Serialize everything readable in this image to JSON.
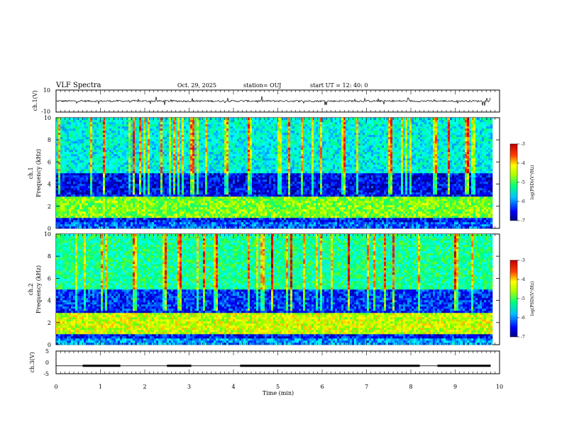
{
  "header": {
    "title": "VLF Spectra",
    "date": "Oct. 29, 2025",
    "station": "station= OUJ",
    "start_ut": "start  UT =  12: 40: 0"
  },
  "chart_data": [
    {
      "type": "line",
      "panel": "ch1-waveform",
      "ylabel": "ch.1(V)",
      "ylim": [
        -10,
        10
      ],
      "ytick_labels": [
        "10",
        "-10"
      ],
      "baseline": 0
    },
    {
      "type": "heatmap",
      "panel": "ch1-spectrogram",
      "ylabel": "ch.1 Frequency (kHz)",
      "ylabel_channel": "ch.1",
      "ylabel_freq": "Frequency  (kHz)",
      "ylim": [
        0,
        10
      ],
      "ytick_labels": [
        "0",
        "2",
        "4",
        "6",
        "8",
        "10"
      ],
      "bands_khz": [
        {
          "range": [
            0,
            0.6
          ],
          "level": -6.2
        },
        {
          "range": [
            1.0,
            2.8
          ],
          "level": -4.8
        },
        {
          "range": [
            3.0,
            5.0
          ],
          "level": -6.6
        },
        {
          "range": [
            5.0,
            10.0
          ],
          "level": -5.6
        }
      ],
      "colorbar": {
        "label": "log(PSD)(V²/Hz)",
        "range": [
          -7,
          -3
        ],
        "tick_labels": [
          "-3",
          "-4",
          "-5",
          "-6",
          "-7"
        ]
      }
    },
    {
      "type": "heatmap",
      "panel": "ch2-spectrogram",
      "ylabel": "ch.2 Frequency (kHz)",
      "ylabel_channel": "ch.2",
      "ylabel_freq": "Frequency  (kHz)",
      "ylim": [
        0,
        10
      ],
      "ytick_labels": [
        "0",
        "2",
        "4",
        "6",
        "8",
        "10"
      ],
      "bands_khz": [
        {
          "range": [
            0,
            0.6
          ],
          "level": -6.0
        },
        {
          "range": [
            1.0,
            2.8
          ],
          "level": -4.5
        },
        {
          "range": [
            3.0,
            5.0
          ],
          "level": -6.4
        },
        {
          "range": [
            5.0,
            10.0
          ],
          "level": -5.3
        }
      ],
      "colorbar": {
        "label": "log(PSD)(V²/Hz)",
        "range": [
          -7,
          -3
        ],
        "tick_labels": [
          "-3",
          "-4",
          "-5",
          "-6",
          "-7"
        ]
      }
    },
    {
      "type": "line",
      "panel": "ch3-waveform",
      "ylabel": "ch.3(V)",
      "ylim": [
        -5,
        5
      ],
      "ytick_labels": [
        "5",
        "0",
        "-5"
      ],
      "baseline": -1.5,
      "segments_min": [
        [
          0.6,
          1.45
        ],
        [
          2.5,
          3.05
        ],
        [
          4.15,
          8.2
        ],
        [
          8.6,
          9.8
        ]
      ]
    }
  ],
  "xaxis": {
    "label": "Time  (min)",
    "range": [
      0,
      10
    ],
    "tick_labels": [
      "0",
      "1",
      "2",
      "3",
      "4",
      "5",
      "6",
      "7",
      "8",
      "9",
      "10"
    ],
    "data_end": 9.8
  },
  "colormap": [
    "#000080",
    "#0000ff",
    "#0080ff",
    "#00ffff",
    "#00ff80",
    "#80ff00",
    "#ffff00",
    "#ff8000",
    "#ff0000",
    "#800000"
  ]
}
